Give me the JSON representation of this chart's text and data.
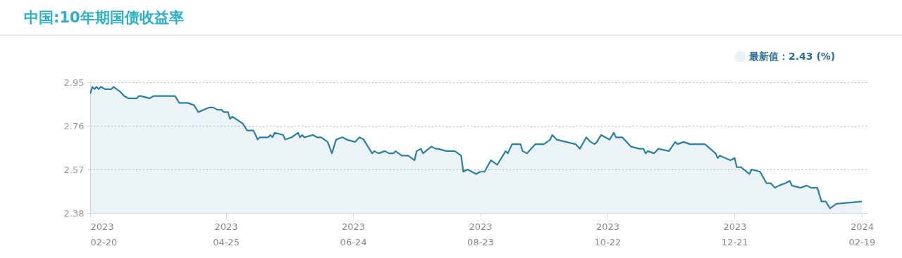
{
  "chart_data": {
    "type": "area",
    "title": "中国:10年期国债收益率",
    "x": [
      "2023-02-20",
      "2023-02-21",
      "2023-02-22",
      "2023-02-23",
      "2023-02-24",
      "2023-02-25",
      "2023-02-27",
      "2023-03-02",
      "2023-03-03",
      "2023-03-06",
      "2023-03-08",
      "2023-03-10",
      "2023-03-14",
      "2023-03-15",
      "2023-03-16",
      "2023-03-20",
      "2023-03-22",
      "2023-03-24",
      "2023-03-27",
      "2023-03-30",
      "2023-04-01",
      "2023-04-03",
      "2023-04-07",
      "2023-04-10",
      "2023-04-12",
      "2023-04-17",
      "2023-04-19",
      "2023-04-21",
      "2023-04-23",
      "2023-04-24",
      "2023-04-26",
      "2023-04-27",
      "2023-04-28",
      "2023-05-03",
      "2023-05-05",
      "2023-05-08",
      "2023-05-10",
      "2023-05-11",
      "2023-05-15",
      "2023-05-16",
      "2023-05-17",
      "2023-05-18",
      "2023-05-22",
      "2023-05-23",
      "2023-05-26",
      "2023-05-29",
      "2023-05-30",
      "2023-05-31",
      "2023-06-01",
      "2023-06-05",
      "2023-06-07",
      "2023-06-09",
      "2023-06-12",
      "2023-06-14",
      "2023-06-16",
      "2023-06-19",
      "2023-06-21",
      "2023-06-25",
      "2023-06-27",
      "2023-06-29",
      "2023-07-03",
      "2023-07-04",
      "2023-07-06",
      "2023-07-09",
      "2023-07-11",
      "2023-07-13",
      "2023-07-14",
      "2023-07-17",
      "2023-07-20",
      "2023-07-23",
      "2023-07-24",
      "2023-07-26",
      "2023-07-27",
      "2023-07-31",
      "2023-08-02",
      "2023-08-03",
      "2023-08-07",
      "2023-08-11",
      "2023-08-14",
      "2023-08-15",
      "2023-08-17",
      "2023-08-21",
      "2023-08-23",
      "2023-08-25",
      "2023-08-28",
      "2023-08-31",
      "2023-09-04",
      "2023-09-05",
      "2023-09-07",
      "2023-09-11",
      "2023-09-12",
      "2023-09-14",
      "2023-09-18",
      "2023-09-22",
      "2023-09-25",
      "2023-09-26",
      "2023-09-28",
      "2023-10-07",
      "2023-10-09",
      "2023-10-12",
      "2023-10-14",
      "2023-10-16",
      "2023-10-17",
      "2023-10-19",
      "2023-10-23",
      "2023-10-25",
      "2023-10-26",
      "2023-10-29",
      "2023-10-31",
      "2023-11-02",
      "2023-11-06",
      "2023-11-08",
      "2023-11-09",
      "2023-11-10",
      "2023-11-13",
      "2023-11-15",
      "2023-11-20",
      "2023-11-23",
      "2023-11-24",
      "2023-11-27",
      "2023-11-30",
      "2023-12-07",
      "2023-12-12",
      "2023-12-13",
      "2023-12-14",
      "2023-12-19",
      "2023-12-21",
      "2023-12-22",
      "2023-12-24",
      "2023-12-28",
      "2023-12-29",
      "2024-01-02",
      "2024-01-05",
      "2024-01-07",
      "2024-01-09",
      "2024-01-11",
      "2024-01-14",
      "2024-01-16",
      "2024-01-17",
      "2024-01-21",
      "2024-01-24",
      "2024-01-26",
      "2024-01-29",
      "2024-01-31",
      "2024-02-02",
      "2024-02-04",
      "2024-02-07",
      "2024-02-19"
    ],
    "series": [
      {
        "name": "最新值：2.43 (%)",
        "color": "#2a7fa5",
        "values": [
          2.9,
          2.93,
          2.92,
          2.93,
          2.92,
          2.93,
          2.92,
          2.92,
          2.93,
          2.91,
          2.89,
          2.88,
          2.88,
          2.89,
          2.89,
          2.88,
          2.89,
          2.89,
          2.89,
          2.89,
          2.89,
          2.86,
          2.86,
          2.85,
          2.82,
          2.84,
          2.84,
          2.83,
          2.83,
          2.82,
          2.82,
          2.79,
          2.8,
          2.77,
          2.74,
          2.74,
          2.7,
          2.71,
          2.71,
          2.72,
          2.71,
          2.73,
          2.72,
          2.7,
          2.71,
          2.73,
          2.71,
          2.72,
          2.71,
          2.72,
          2.71,
          2.71,
          2.69,
          2.64,
          2.7,
          2.71,
          2.7,
          2.69,
          2.71,
          2.7,
          2.64,
          2.65,
          2.64,
          2.65,
          2.64,
          2.64,
          2.65,
          2.63,
          2.63,
          2.61,
          2.65,
          2.66,
          2.64,
          2.67,
          2.66,
          2.66,
          2.65,
          2.65,
          2.63,
          2.56,
          2.57,
          2.55,
          2.56,
          2.56,
          2.61,
          2.59,
          2.65,
          2.64,
          2.68,
          2.68,
          2.65,
          2.64,
          2.68,
          2.68,
          2.7,
          2.72,
          2.7,
          2.68,
          2.66,
          2.71,
          2.69,
          2.68,
          2.69,
          2.72,
          2.7,
          2.73,
          2.71,
          2.71,
          2.69,
          2.67,
          2.66,
          2.66,
          2.64,
          2.65,
          2.64,
          2.66,
          2.65,
          2.69,
          2.68,
          2.69,
          2.68,
          2.68,
          2.64,
          2.62,
          2.63,
          2.61,
          2.62,
          2.58,
          2.58,
          2.55,
          2.57,
          2.56,
          2.51,
          2.51,
          2.49,
          2.5,
          2.51,
          2.52,
          2.5,
          2.49,
          2.5,
          2.49,
          2.49,
          2.43,
          2.43,
          2.4,
          2.42,
          2.43
        ]
      }
    ],
    "xlim": [
      "2023-02-20",
      "2024-02-22"
    ],
    "xticks": [
      {
        "value": "2023-02-20",
        "label": "2023\n02-20"
      },
      {
        "value": "2023-04-25",
        "label": "2023\n04-25"
      },
      {
        "value": "2023-06-24",
        "label": "2023\n06-24"
      },
      {
        "value": "2023-08-23",
        "label": "2023\n08-23"
      },
      {
        "value": "2023-10-22",
        "label": "2023\n10-22"
      },
      {
        "value": "2023-12-21",
        "label": "2023\n12-21"
      },
      {
        "value": "2024-02-19",
        "label": "2024\n02-19"
      }
    ],
    "ylim": [
      2.38,
      2.95
    ],
    "yticks": [
      2.38,
      2.57,
      2.76,
      2.95
    ],
    "grid": "y",
    "legend": "top right"
  }
}
